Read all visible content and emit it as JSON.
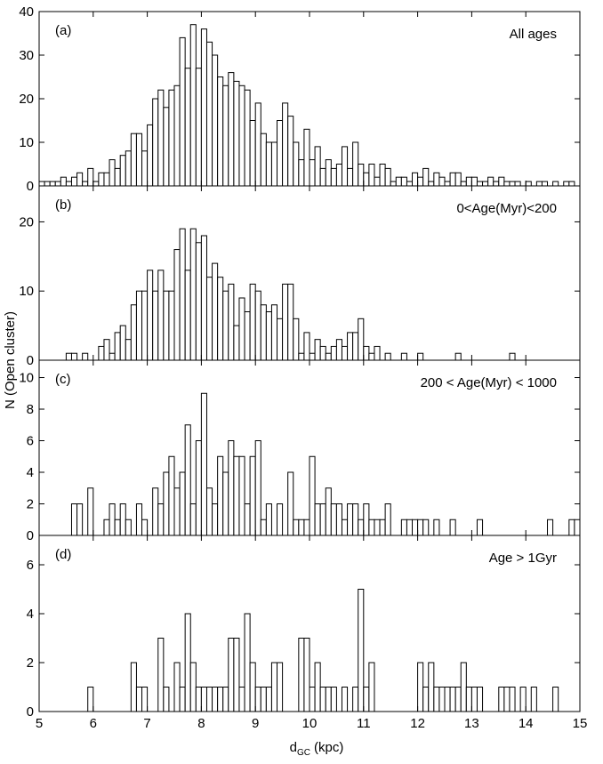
{
  "chart_data": [
    {
      "type": "histogram",
      "panel_label": "(a)",
      "annotation": "All ages",
      "color": "#ffffff",
      "edgecolor": "#000000",
      "bins": [
        5.0,
        5.1,
        5.2,
        5.3,
        5.4,
        5.5,
        5.6,
        5.7,
        5.8,
        5.9,
        6.0,
        6.1,
        6.2,
        6.3,
        6.4,
        6.5,
        6.6,
        6.7,
        6.8,
        6.9,
        7.0,
        7.1,
        7.2,
        7.3,
        7.4,
        7.5,
        7.6,
        7.7,
        7.8,
        7.9,
        8.0,
        8.1,
        8.2,
        8.3,
        8.4,
        8.5,
        8.6,
        8.7,
        8.8,
        8.9,
        9.0,
        9.1,
        9.2,
        9.3,
        9.4,
        9.5,
        9.6,
        9.7,
        9.8,
        9.9,
        10.0,
        10.1,
        10.2,
        10.3,
        10.4,
        10.5,
        10.6,
        10.7,
        10.8,
        10.9,
        11.0,
        11.1,
        11.2,
        11.3,
        11.4,
        11.5,
        11.6,
        11.7,
        11.8,
        11.9,
        12.0,
        12.1,
        12.2,
        12.3,
        12.4,
        12.5,
        12.6,
        12.7,
        12.8,
        12.9,
        13.0,
        13.1,
        13.2,
        13.3,
        13.4,
        13.5,
        13.6,
        13.7,
        13.8,
        13.9,
        14.0,
        14.1,
        14.2,
        14.3,
        14.4,
        14.5,
        14.6,
        14.7,
        14.8,
        14.9,
        15.0
      ],
      "values": [
        1,
        1,
        1,
        1,
        2,
        1,
        2,
        3,
        1,
        4,
        1,
        3,
        3,
        6,
        4,
        7,
        8,
        12,
        12,
        8,
        14,
        20,
        22,
        18,
        22,
        23,
        34,
        27,
        37,
        27,
        36,
        33,
        30,
        25,
        23,
        26,
        24,
        23,
        22,
        15,
        19,
        12,
        10,
        10,
        15,
        19,
        16,
        10,
        6,
        13,
        6,
        9,
        4,
        6,
        4,
        5,
        9,
        4,
        10,
        5,
        3,
        5,
        2,
        5,
        4,
        1,
        2,
        2,
        1,
        3,
        2,
        4,
        1,
        3,
        2,
        1,
        3,
        3,
        1,
        2,
        2,
        1,
        1,
        2,
        1,
        2,
        1,
        1,
        1,
        0,
        1,
        0,
        1,
        1,
        0,
        1,
        0,
        1,
        1,
        0
      ],
      "ylim": [
        0,
        40
      ],
      "yticks": [
        0,
        10,
        20,
        30,
        40
      ]
    },
    {
      "type": "histogram",
      "panel_label": "(b)",
      "annotation": "0<Age(Myr)<200",
      "color": "#ffffff",
      "edgecolor": "#000000",
      "bins": [
        5.0,
        5.1,
        5.2,
        5.3,
        5.4,
        5.5,
        5.6,
        5.7,
        5.8,
        5.9,
        6.0,
        6.1,
        6.2,
        6.3,
        6.4,
        6.5,
        6.6,
        6.7,
        6.8,
        6.9,
        7.0,
        7.1,
        7.2,
        7.3,
        7.4,
        7.5,
        7.6,
        7.7,
        7.8,
        7.9,
        8.0,
        8.1,
        8.2,
        8.3,
        8.4,
        8.5,
        8.6,
        8.7,
        8.8,
        8.9,
        9.0,
        9.1,
        9.2,
        9.3,
        9.4,
        9.5,
        9.6,
        9.7,
        9.8,
        9.9,
        10.0,
        10.1,
        10.2,
        10.3,
        10.4,
        10.5,
        10.6,
        10.7,
        10.8,
        10.9,
        11.0,
        11.1,
        11.2,
        11.3,
        11.4,
        11.5,
        11.6,
        11.7,
        11.8,
        11.9,
        12.0,
        12.1,
        12.2,
        12.3,
        12.4,
        12.5,
        12.6,
        12.7,
        12.8,
        12.9,
        13.0,
        13.1,
        13.2,
        13.3,
        13.4,
        13.5,
        13.6,
        13.7,
        13.8,
        13.9,
        14.0,
        14.1,
        14.2,
        14.3,
        14.4,
        14.5,
        14.6,
        14.7,
        14.8,
        14.9,
        15.0
      ],
      "values": [
        0,
        0,
        0,
        0,
        0,
        1,
        1,
        0,
        1,
        0,
        0,
        2,
        3,
        1,
        4,
        5,
        3,
        8,
        10,
        10,
        13,
        10,
        13,
        10,
        10,
        16,
        19,
        13,
        19,
        17,
        18,
        12,
        14,
        12,
        10,
        11,
        5,
        9,
        7,
        11,
        10,
        8,
        7,
        8,
        6,
        11,
        11,
        6,
        1,
        4,
        1,
        3,
        2,
        1,
        2,
        3,
        2,
        4,
        4,
        6,
        2,
        1,
        2,
        0,
        1,
        0,
        0,
        1,
        0,
        0,
        1,
        0,
        0,
        0,
        0,
        0,
        0,
        1,
        0,
        0,
        0,
        0,
        0,
        0,
        0,
        0,
        0,
        1,
        0,
        0,
        0,
        0,
        0,
        0,
        0,
        0,
        0,
        0,
        0,
        0
      ],
      "ylim": [
        0,
        25.2
      ],
      "yticks": [
        0,
        10,
        20
      ]
    },
    {
      "type": "histogram",
      "panel_label": "(c)",
      "annotation": "200 < Age(Myr) < 1000",
      "ylabel": "N (Open cluster)",
      "color": "#ffffff",
      "edgecolor": "#000000",
      "bins": [
        5.0,
        5.1,
        5.2,
        5.3,
        5.4,
        5.5,
        5.6,
        5.7,
        5.8,
        5.9,
        6.0,
        6.1,
        6.2,
        6.3,
        6.4,
        6.5,
        6.6,
        6.7,
        6.8,
        6.9,
        7.0,
        7.1,
        7.2,
        7.3,
        7.4,
        7.5,
        7.6,
        7.7,
        7.8,
        7.9,
        8.0,
        8.1,
        8.2,
        8.3,
        8.4,
        8.5,
        8.6,
        8.7,
        8.8,
        8.9,
        9.0,
        9.1,
        9.2,
        9.3,
        9.4,
        9.5,
        9.6,
        9.7,
        9.8,
        9.9,
        10.0,
        10.1,
        10.2,
        10.3,
        10.4,
        10.5,
        10.6,
        10.7,
        10.8,
        10.9,
        11.0,
        11.1,
        11.2,
        11.3,
        11.4,
        11.5,
        11.6,
        11.7,
        11.8,
        11.9,
        12.0,
        12.1,
        12.2,
        12.3,
        12.4,
        12.5,
        12.6,
        12.7,
        12.8,
        12.9,
        13.0,
        13.1,
        13.2,
        13.3,
        13.4,
        13.5,
        13.6,
        13.7,
        13.8,
        13.9,
        14.0,
        14.1,
        14.2,
        14.3,
        14.4,
        14.5,
        14.6,
        14.7,
        14.8,
        14.9,
        15.0
      ],
      "values": [
        0,
        0,
        0,
        0,
        0,
        0,
        2,
        2,
        0,
        3,
        0,
        0,
        1,
        2,
        1,
        2,
        1,
        0,
        2,
        1,
        0,
        3,
        2,
        4,
        5,
        3,
        4,
        7,
        2,
        6,
        9,
        3,
        2,
        5,
        4,
        6,
        5,
        5,
        2,
        5,
        6,
        1,
        2,
        0,
        2,
        0,
        4,
        1,
        1,
        1,
        5,
        2,
        2,
        3,
        2,
        2,
        1,
        2,
        2,
        1,
        2,
        1,
        1,
        1,
        2,
        0,
        0,
        1,
        1,
        1,
        1,
        1,
        0,
        1,
        0,
        0,
        1,
        0,
        0,
        0,
        0,
        1,
        0,
        0,
        0,
        0,
        0,
        0,
        0,
        0,
        0,
        0,
        0,
        0,
        1,
        0,
        0,
        0,
        1,
        1
      ],
      "ylim": [
        0,
        11.1
      ],
      "yticks": [
        0,
        2,
        4,
        6,
        8,
        10
      ]
    },
    {
      "type": "histogram",
      "panel_label": "(d)",
      "annotation": "Age > 1Gyr",
      "xlabel": "d",
      "xlabel_subscript": "GC",
      "xlabel_unit": "(kpc)",
      "color": "#ffffff",
      "edgecolor": "#000000",
      "bins": [
        5.0,
        5.1,
        5.2,
        5.3,
        5.4,
        5.5,
        5.6,
        5.7,
        5.8,
        5.9,
        6.0,
        6.1,
        6.2,
        6.3,
        6.4,
        6.5,
        6.6,
        6.7,
        6.8,
        6.9,
        7.0,
        7.1,
        7.2,
        7.3,
        7.4,
        7.5,
        7.6,
        7.7,
        7.8,
        7.9,
        8.0,
        8.1,
        8.2,
        8.3,
        8.4,
        8.5,
        8.6,
        8.7,
        8.8,
        8.9,
        9.0,
        9.1,
        9.2,
        9.3,
        9.4,
        9.5,
        9.6,
        9.7,
        9.8,
        9.9,
        10.0,
        10.1,
        10.2,
        10.3,
        10.4,
        10.5,
        10.6,
        10.7,
        10.8,
        10.9,
        11.0,
        11.1,
        11.2,
        11.3,
        11.4,
        11.5,
        11.6,
        11.7,
        11.8,
        11.9,
        12.0,
        12.1,
        12.2,
        12.3,
        12.4,
        12.5,
        12.6,
        12.7,
        12.8,
        12.9,
        13.0,
        13.1,
        13.2,
        13.3,
        13.4,
        13.5,
        13.6,
        13.7,
        13.8,
        13.9,
        14.0,
        14.1,
        14.2,
        14.3,
        14.4,
        14.5,
        14.6,
        14.7,
        14.8,
        14.9,
        15.0
      ],
      "values": [
        0,
        0,
        0,
        0,
        0,
        0,
        0,
        0,
        0,
        1,
        0,
        0,
        0,
        0,
        0,
        0,
        0,
        2,
        1,
        1,
        0,
        0,
        3,
        1,
        0,
        2,
        1,
        4,
        2,
        1,
        1,
        1,
        1,
        1,
        1,
        3,
        3,
        1,
        4,
        2,
        1,
        1,
        1,
        2,
        2,
        0,
        0,
        0,
        3,
        3,
        1,
        2,
        1,
        1,
        1,
        0,
        1,
        0,
        1,
        5,
        1,
        2,
        0,
        0,
        0,
        0,
        0,
        0,
        0,
        0,
        2,
        1,
        2,
        1,
        1,
        1,
        1,
        1,
        2,
        1,
        1,
        1,
        0,
        0,
        0,
        1,
        1,
        1,
        0,
        1,
        0,
        1,
        0,
        0,
        0,
        1,
        0,
        0,
        0,
        0
      ],
      "ylim": [
        0,
        7.2
      ],
      "yticks": [
        0,
        2,
        4,
        6
      ],
      "xlim": [
        5,
        15
      ],
      "xticks": [
        5,
        6,
        7,
        8,
        9,
        10,
        11,
        12,
        13,
        14,
        15
      ]
    }
  ]
}
